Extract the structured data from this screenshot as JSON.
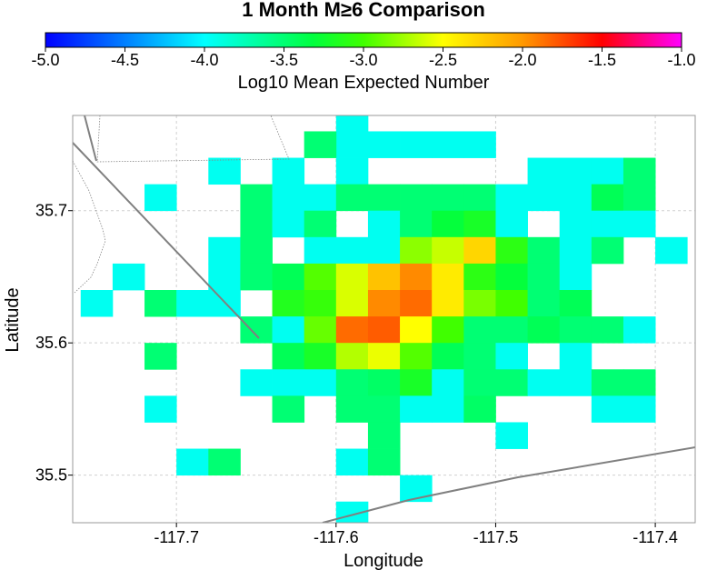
{
  "chart_data": {
    "type": "heatmap",
    "title": "1 Month M≥6 Comparison",
    "xlabel": "Longitude",
    "ylabel": "Latitude",
    "colorbar": {
      "label": "Log10 Mean Expected Number",
      "range": [
        -5.0,
        -1.0
      ],
      "ticks": [
        "-5.0",
        "-4.5",
        "-4.0",
        "-3.5",
        "-3.0",
        "-2.5",
        "-2.0",
        "-1.5",
        "-1.0"
      ],
      "colormap": "rainbow-blue-to-magenta"
    },
    "xlim": [
      -117.765,
      -117.375
    ],
    "ylim": [
      35.464,
      35.772
    ],
    "xticks": [
      -117.7,
      -117.6,
      -117.5,
      -117.4
    ],
    "xtick_labels": [
      "-117.7",
      "-117.6",
      "-117.5",
      "-117.4"
    ],
    "yticks": [
      35.5,
      35.6,
      35.7
    ],
    "ytick_labels": [
      "35.5",
      "35.6",
      "35.7"
    ],
    "grid": true,
    "cell_size": 0.02,
    "cells": [
      [
        -117.59,
        35.77,
        -3.95
      ],
      [
        -117.59,
        35.75,
        -3.95
      ],
      [
        -117.61,
        35.75,
        -3.5
      ],
      [
        -117.57,
        35.75,
        -3.95
      ],
      [
        -117.55,
        35.75,
        -3.95
      ],
      [
        -117.53,
        35.75,
        -3.95
      ],
      [
        -117.51,
        35.75,
        -3.95
      ],
      [
        -117.67,
        35.73,
        -3.95
      ],
      [
        -117.63,
        35.73,
        -3.95
      ],
      [
        -117.59,
        35.73,
        -3.95
      ],
      [
        -117.47,
        35.73,
        -3.95
      ],
      [
        -117.45,
        35.73,
        -3.95
      ],
      [
        -117.43,
        35.73,
        -3.95
      ],
      [
        -117.41,
        35.73,
        -3.5
      ],
      [
        -117.71,
        35.71,
        -3.95
      ],
      [
        -117.65,
        35.71,
        -3.5
      ],
      [
        -117.63,
        35.71,
        -3.95
      ],
      [
        -117.61,
        35.71,
        -3.95
      ],
      [
        -117.59,
        35.71,
        -3.5
      ],
      [
        -117.57,
        35.71,
        -3.5
      ],
      [
        -117.55,
        35.71,
        -3.5
      ],
      [
        -117.53,
        35.71,
        -3.5
      ],
      [
        -117.51,
        35.71,
        -3.5
      ],
      [
        -117.49,
        35.71,
        -3.95
      ],
      [
        -117.47,
        35.71,
        -3.95
      ],
      [
        -117.45,
        35.71,
        -3.95
      ],
      [
        -117.43,
        35.71,
        -3.4
      ],
      [
        -117.41,
        35.71,
        -3.5
      ],
      [
        -117.65,
        35.69,
        -3.5
      ],
      [
        -117.63,
        35.69,
        -3.95
      ],
      [
        -117.61,
        35.69,
        -3.5
      ],
      [
        -117.57,
        35.69,
        -3.95
      ],
      [
        -117.55,
        35.69,
        -3.5
      ],
      [
        -117.53,
        35.69,
        -3.3
      ],
      [
        -117.51,
        35.69,
        -3.2
      ],
      [
        -117.49,
        35.69,
        -3.95
      ],
      [
        -117.45,
        35.69,
        -3.95
      ],
      [
        -117.43,
        35.69,
        -3.95
      ],
      [
        -117.41,
        35.69,
        -3.95
      ],
      [
        -117.67,
        35.67,
        -3.95
      ],
      [
        -117.65,
        35.67,
        -3.5
      ],
      [
        -117.61,
        35.67,
        -3.95
      ],
      [
        -117.59,
        35.67,
        -3.95
      ],
      [
        -117.57,
        35.67,
        -3.95
      ],
      [
        -117.55,
        35.67,
        -2.8
      ],
      [
        -117.53,
        35.67,
        -2.65
      ],
      [
        -117.51,
        35.67,
        -2.3
      ],
      [
        -117.49,
        35.67,
        -3.1
      ],
      [
        -117.47,
        35.67,
        -3.5
      ],
      [
        -117.45,
        35.67,
        -3.95
      ],
      [
        -117.43,
        35.67,
        -3.5
      ],
      [
        -117.39,
        35.67,
        -3.95
      ],
      [
        -117.73,
        35.65,
        -3.95
      ],
      [
        -117.67,
        35.65,
        -3.95
      ],
      [
        -117.65,
        35.65,
        -3.5
      ],
      [
        -117.63,
        35.65,
        -3.4
      ],
      [
        -117.61,
        35.65,
        -2.95
      ],
      [
        -117.59,
        35.65,
        -2.6
      ],
      [
        -117.57,
        35.65,
        -2.2
      ],
      [
        -117.55,
        35.65,
        -1.95
      ],
      [
        -117.53,
        35.65,
        -2.4
      ],
      [
        -117.51,
        35.65,
        -3.1
      ],
      [
        -117.49,
        35.65,
        -3.3
      ],
      [
        -117.47,
        35.65,
        -3.5
      ],
      [
        -117.45,
        35.65,
        -3.95
      ],
      [
        -117.75,
        35.63,
        -3.95
      ],
      [
        -117.71,
        35.63,
        -3.5
      ],
      [
        -117.69,
        35.63,
        -3.95
      ],
      [
        -117.67,
        35.63,
        -3.95
      ],
      [
        -117.63,
        35.63,
        -3.15
      ],
      [
        -117.61,
        35.63,
        -3.05
      ],
      [
        -117.59,
        35.63,
        -2.6
      ],
      [
        -117.57,
        35.63,
        -1.95
      ],
      [
        -117.55,
        35.63,
        -1.85
      ],
      [
        -117.53,
        35.63,
        -2.4
      ],
      [
        -117.51,
        35.63,
        -2.85
      ],
      [
        -117.49,
        35.63,
        -3.0
      ],
      [
        -117.47,
        35.63,
        -3.5
      ],
      [
        -117.45,
        35.63,
        -3.4
      ],
      [
        -117.65,
        35.61,
        -3.5
      ],
      [
        -117.63,
        35.61,
        -3.95
      ],
      [
        -117.61,
        35.61,
        -2.9
      ],
      [
        -117.59,
        35.61,
        -1.85
      ],
      [
        -117.57,
        35.61,
        -1.8
      ],
      [
        -117.55,
        35.61,
        -2.5
      ],
      [
        -117.53,
        35.61,
        -3.0
      ],
      [
        -117.51,
        35.61,
        -3.5
      ],
      [
        -117.49,
        35.61,
        -3.5
      ],
      [
        -117.47,
        35.61,
        -3.4
      ],
      [
        -117.45,
        35.61,
        -3.5
      ],
      [
        -117.43,
        35.61,
        -3.5
      ],
      [
        -117.41,
        35.61,
        -3.95
      ],
      [
        -117.71,
        35.59,
        -3.5
      ],
      [
        -117.63,
        35.59,
        -3.4
      ],
      [
        -117.61,
        35.59,
        -3.2
      ],
      [
        -117.59,
        35.59,
        -2.7
      ],
      [
        -117.57,
        35.59,
        -2.55
      ],
      [
        -117.55,
        35.59,
        -2.95
      ],
      [
        -117.53,
        35.59,
        -3.4
      ],
      [
        -117.51,
        35.59,
        -3.5
      ],
      [
        -117.49,
        35.59,
        -3.95
      ],
      [
        -117.45,
        35.59,
        -3.95
      ],
      [
        -117.65,
        35.57,
        -3.95
      ],
      [
        -117.63,
        35.57,
        -3.95
      ],
      [
        -117.61,
        35.57,
        -3.95
      ],
      [
        -117.59,
        35.57,
        -3.5
      ],
      [
        -117.57,
        35.57,
        -3.45
      ],
      [
        -117.55,
        35.57,
        -3.2
      ],
      [
        -117.53,
        35.57,
        -3.95
      ],
      [
        -117.51,
        35.57,
        -3.5
      ],
      [
        -117.49,
        35.57,
        -3.5
      ],
      [
        -117.47,
        35.57,
        -3.95
      ],
      [
        -117.45,
        35.57,
        -3.95
      ],
      [
        -117.43,
        35.57,
        -3.5
      ],
      [
        -117.41,
        35.57,
        -3.5
      ],
      [
        -117.71,
        35.55,
        -3.95
      ],
      [
        -117.63,
        35.55,
        -3.5
      ],
      [
        -117.59,
        35.55,
        -3.5
      ],
      [
        -117.57,
        35.55,
        -3.5
      ],
      [
        -117.55,
        35.55,
        -3.95
      ],
      [
        -117.53,
        35.55,
        -3.95
      ],
      [
        -117.51,
        35.55,
        -3.45
      ],
      [
        -117.43,
        35.55,
        -3.95
      ],
      [
        -117.41,
        35.55,
        -3.95
      ],
      [
        -117.57,
        35.53,
        -3.5
      ],
      [
        -117.49,
        35.53,
        -3.95
      ],
      [
        -117.69,
        35.51,
        -3.95
      ],
      [
        -117.67,
        35.51,
        -3.5
      ],
      [
        -117.59,
        35.51,
        -3.95
      ],
      [
        -117.57,
        35.51,
        -3.5
      ],
      [
        -117.55,
        35.49,
        -3.95
      ],
      [
        -117.59,
        35.47,
        -3.95
      ]
    ],
    "colors": {
      "faults": "#808080",
      "county_lines": "#888888",
      "grid": "#d0d0d0",
      "frame": "#999999"
    }
  }
}
